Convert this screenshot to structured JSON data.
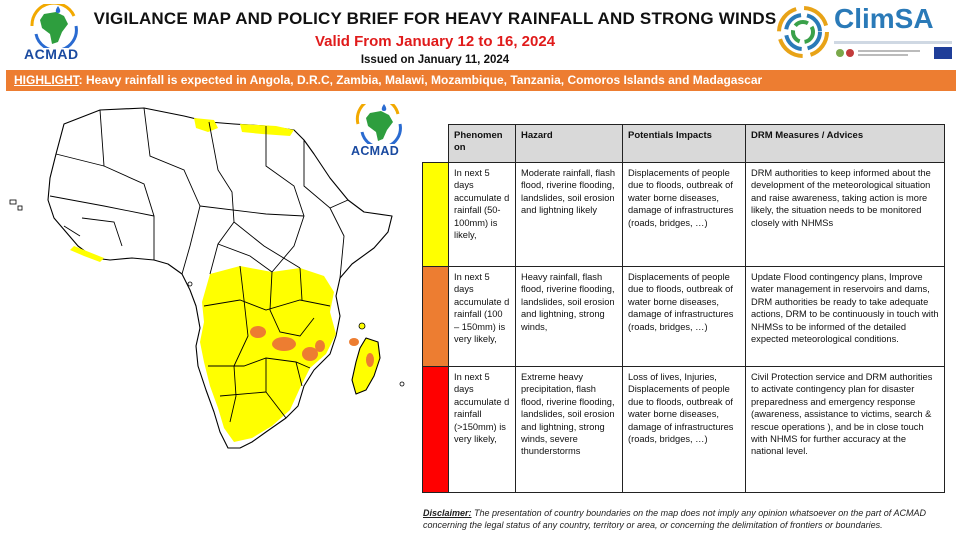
{
  "header": {
    "left_logo_text": "ACMAD",
    "title": "VIGILANCE MAP AND POLICY BRIEF FOR HEAVY RAINFALL AND STRONG WINDS",
    "valid": "Valid From January 12 to 16, 2024",
    "issued": "Issued on January 11, 2024",
    "right_logo_text": "ClimSA"
  },
  "highlight": {
    "label": "HIGHLIGHT",
    "text": ":  Heavy rainfall is expected in Angola, D.R.C, Zambia, Malawi, Mozambique, Tanzania, Comoros Islands and Madagascar"
  },
  "map": {
    "logo_text": "ACMAD",
    "colors": {
      "moderate": "#ffff00",
      "heavy": "#ed7d31",
      "extreme": "#ff0000",
      "land": "#ffffff",
      "border": "#000000"
    }
  },
  "table": {
    "headers": {
      "phenomenon": "Phenomen on",
      "hazard": "Hazard",
      "impacts": "Potentials Impacts",
      "measures": "DRM Measures / Advices"
    },
    "rows": [
      {
        "level": "yellow",
        "phenomenon": "In next 5 days accumulate d rainfall (50-100mm) is likely,",
        "hazard": "Moderate rainfall, flash flood, riverine flooding, landslides, soil erosion and lightning likely",
        "impacts": "Displacements of people due to floods, outbreak of water borne diseases, damage of infrastructures (roads, bridges, …)",
        "measures": "DRM authorities to keep informed about the development of the meteorological situation and raise awareness, taking action is more likely, the situation needs to be monitored closely with NHMSs"
      },
      {
        "level": "orange",
        "phenomenon": " In next 5 days accumulate d rainfall (100 – 150mm) is very likely,",
        "hazard": "Heavy rainfall, flash flood, riverine flooding, landslides, soil erosion and lightning, strong winds,",
        "impacts": "Displacements of people due to floods, outbreak of water borne diseases, damage of infrastructures (roads, bridges, …)",
        "measures": "Update Flood contingency plans, Improve water management in reservoirs and dams, DRM authorities be ready to take adequate actions, DRM to be continuously in touch with NHMSs to be informed of the detailed expected meteorological conditions."
      },
      {
        "level": "red",
        "phenomenon": "In next 5 days accumulate d rainfall (>150mm) is very likely,",
        "hazard": "Extreme heavy precipitation, flash flood, riverine flooding, landslides, soil erosion and lightning, strong winds, severe thunderstorms",
        "impacts": "Loss of lives,  Injuries, Displacements of people due to floods, outbreak of water borne diseases, damage of infrastructures (roads, bridges, …)",
        "measures": "Civil Protection service and DRM authorities to activate contingency plan for disaster preparedness and emergency response (awareness, assistance to victims, search & rescue operations ), and be in close touch with NHMS for further accuracy at the national level."
      }
    ]
  },
  "disclaimer": {
    "label": "Disclaimer:",
    "text": " The presentation of country boundaries on the map does not imply any opinion whatsoever on the part of ACMAD concerning the legal status of any country, territory or area, or concerning the delimitation of frontiers or boundaries."
  }
}
